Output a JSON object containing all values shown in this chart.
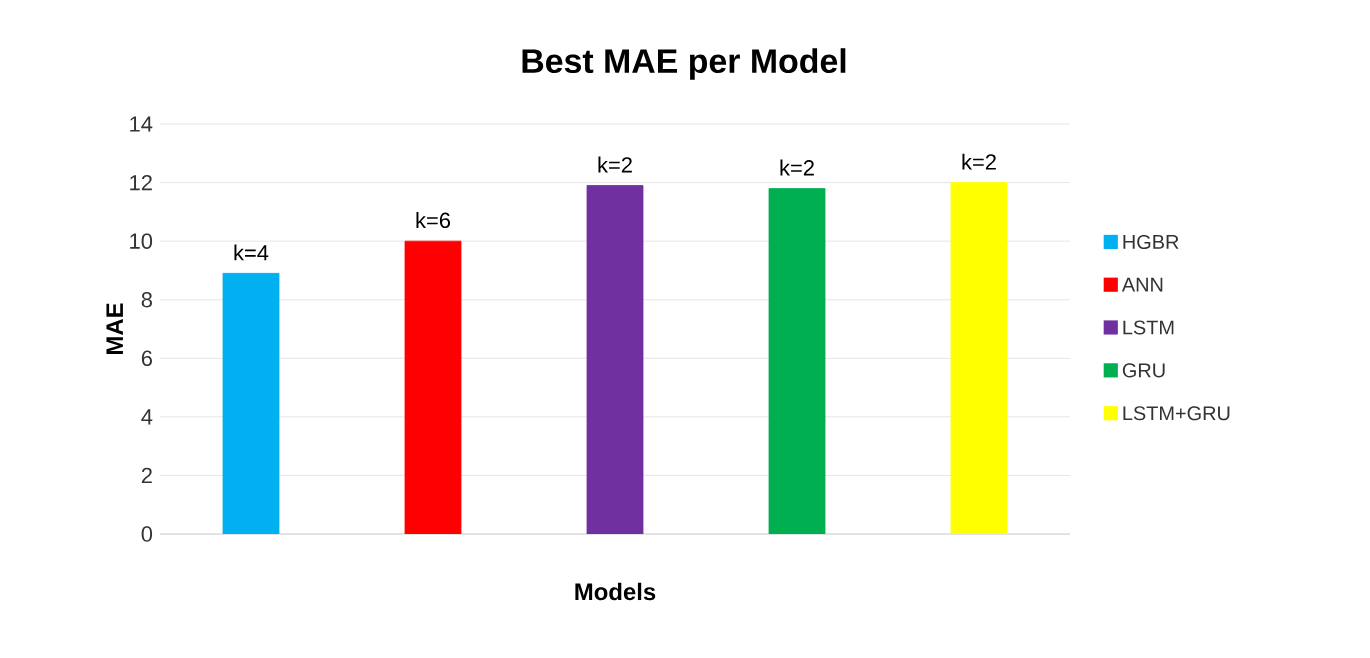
{
  "chart_data": {
    "type": "bar",
    "title": "Best MAE per Model",
    "xlabel": "Models",
    "ylabel": "MAE",
    "categories": [
      null,
      null,
      null,
      null,
      null
    ],
    "series": [
      {
        "name": "HGBR",
        "color": "#00b0f0",
        "values": [
          8.9,
          null,
          null,
          null,
          null
        ]
      },
      {
        "name": "ANN",
        "color": "#ff0000",
        "values": [
          null,
          10.0,
          null,
          null,
          null
        ]
      },
      {
        "name": "LSTM",
        "color": "#7030a0",
        "values": [
          null,
          null,
          11.9,
          null,
          null
        ]
      },
      {
        "name": "GRU",
        "color": "#00b050",
        "values": [
          null,
          null,
          null,
          11.8,
          null
        ]
      },
      {
        "name": "LSTM+GRU",
        "color": "#ffff00",
        "values": [
          null,
          null,
          null,
          null,
          12.0
        ]
      }
    ],
    "annotations": [
      {
        "text": "k=4",
        "y": 8.9
      },
      {
        "text": "k=6",
        "y": 10.0
      },
      {
        "text": "k=2",
        "y": 11.9
      },
      {
        "text": "k=2",
        "y": 11.8
      },
      {
        "text": "k=2",
        "y": 12.0
      }
    ],
    "ylim": [
      0,
      14
    ],
    "yticks": [
      0,
      2,
      4,
      6,
      8,
      10,
      12,
      14
    ],
    "grid": "y",
    "legend": "right"
  }
}
